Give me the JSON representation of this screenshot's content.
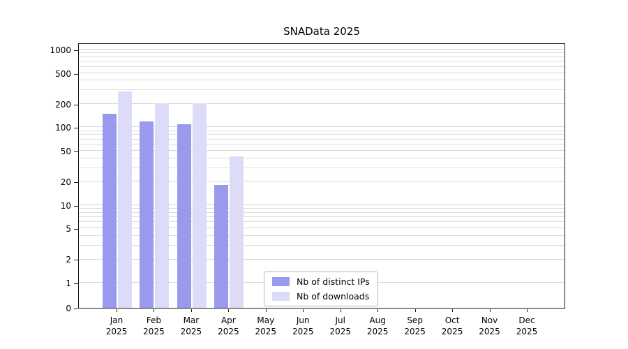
{
  "title": "SNAData 2025",
  "chart_data": {
    "type": "bar",
    "title": "SNAData 2025",
    "categories": [
      "Jan 2025",
      "Feb 2025",
      "Mar 2025",
      "Apr 2025",
      "May 2025",
      "Jun 2025",
      "Jul 2025",
      "Aug 2025",
      "Sep 2025",
      "Oct 2025",
      "Nov 2025",
      "Dec 2025"
    ],
    "series": [
      {
        "name": "Nb of distinct IPs",
        "color": "#9999ee",
        "values": [
          150,
          120,
          110,
          18,
          0,
          0,
          0,
          0,
          0,
          0,
          0,
          0
        ]
      },
      {
        "name": "Nb of downloads",
        "color": "#dcdcf8",
        "values": [
          290,
          205,
          205,
          42,
          0,
          0,
          0,
          0,
          0,
          0,
          0,
          0
        ]
      }
    ],
    "y_ticks": [
      0,
      1,
      2,
      5,
      10,
      20,
      50,
      100,
      200,
      500,
      1000
    ],
    "y_scale": "symlog",
    "ylim": [
      0,
      1200
    ],
    "xlabel": "",
    "ylabel": "",
    "grid": true,
    "legend_position": "lower-center"
  },
  "colors": {
    "bar_distinct_ips": "#9999ee",
    "bar_downloads": "#dcdcf8",
    "gridline": "#dcdcdc",
    "spine": "#1a1a1a",
    "text": "#000000",
    "legend_border": "#b3b3b3",
    "background": "#ffffff"
  }
}
